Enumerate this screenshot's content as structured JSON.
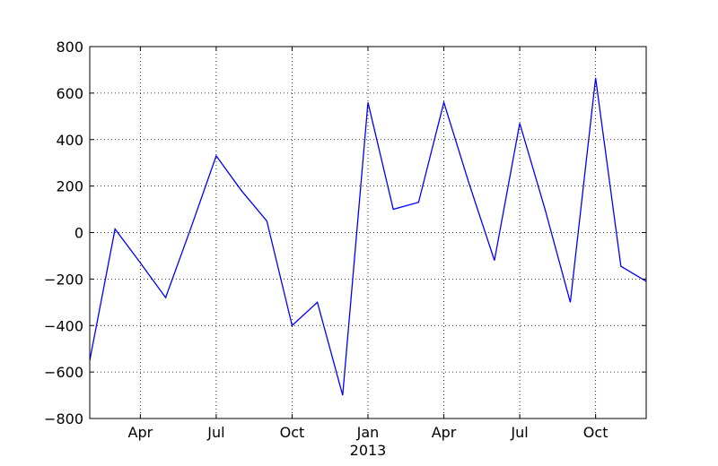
{
  "chart_data": {
    "type": "line",
    "title": "",
    "xlabel": "",
    "ylabel": "",
    "x_range": [
      "2012-02",
      "2013-12"
    ],
    "ylim": [
      -800,
      800
    ],
    "y_ticks": [
      -800,
      -600,
      -400,
      -200,
      0,
      200,
      400,
      600,
      800
    ],
    "y_tick_labels": [
      "−800",
      "−600",
      "−400",
      "−200",
      "0",
      "200",
      "400",
      "600",
      "800"
    ],
    "x_ticks": [
      {
        "date": "2012-04",
        "label": "Apr"
      },
      {
        "date": "2012-07",
        "label": "Jul"
      },
      {
        "date": "2012-10",
        "label": "Oct"
      },
      {
        "date": "2013-01",
        "label": "Jan"
      },
      {
        "date": "2013-04",
        "label": "Apr"
      },
      {
        "date": "2013-07",
        "label": "Jul"
      },
      {
        "date": "2013-10",
        "label": "Oct"
      }
    ],
    "year_label": {
      "date": "2013-01",
      "label": "2013"
    },
    "grid": "dotted",
    "series": [
      {
        "color": "#0000ff",
        "x": [
          "2012-02",
          "2012-03",
          "2012-04",
          "2012-05",
          "2012-06",
          "2012-07",
          "2012-08",
          "2012-09",
          "2012-10",
          "2012-11",
          "2012-12",
          "2013-01",
          "2013-02",
          "2013-03",
          "2013-04",
          "2013-05",
          "2013-06",
          "2013-07",
          "2013-08",
          "2013-09",
          "2013-10",
          "2013-11",
          "2013-12"
        ],
        "values": [
          -550,
          15,
          -130,
          -280,
          20,
          330,
          180,
          50,
          -400,
          -300,
          -700,
          560,
          100,
          130,
          560,
          210,
          -120,
          470,
          100,
          -300,
          665,
          -145,
          -210
        ]
      }
    ]
  }
}
